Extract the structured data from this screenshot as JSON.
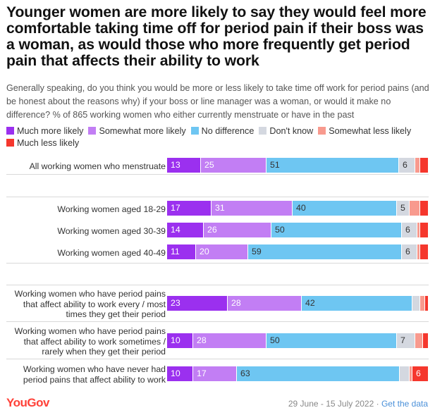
{
  "title": "Younger women are more likely to say they would feel more comfortable taking time off for period pain if their boss was a woman, as would those who more frequently get period pain that affects their ability to work",
  "subtitle": "Generally speaking, do you think you would be more or less likely to take time off work for period pains (and be honest about the reasons why) if your boss or line manager was a woman, or would it make no difference? % of 865 working women who either currently menstruate or have in the past",
  "footer": {
    "logo": "YouGov",
    "dates": "29 June - 15 July 2022",
    "separator": " · ",
    "link": "Get the data"
  },
  "chart_data": {
    "type": "bar",
    "orientation": "horizontal",
    "stacked": true,
    "normalized": true,
    "xlim": [
      0,
      100
    ],
    "legend_position": "top",
    "categories": [
      "All working women who menstruate",
      "Working women aged 18-29",
      "Working women aged 30-39",
      "Working women aged 40-49",
      "Working women who have period pains that affect ability to work every / most times they get their period",
      "Working women who have period pains that affect ability to work sometimes / rarely when they get their period",
      "Working women who have never had period pains that affect ability to work"
    ],
    "series": [
      {
        "name": "Much more likely",
        "color": "#9b30ef",
        "text_color": "#ffffff",
        "values": [
          13,
          17,
          14,
          11,
          23,
          10,
          10
        ]
      },
      {
        "name": "Somewhat more likely",
        "color": "#c27ef4",
        "text_color": "#ffffff",
        "values": [
          25,
          31,
          26,
          20,
          28,
          28,
          17
        ]
      },
      {
        "name": "No difference",
        "color": "#6ec6f2",
        "text_color": "#333333",
        "values": [
          51,
          40,
          50,
          59,
          42,
          50,
          63
        ]
      },
      {
        "name": "Don't know",
        "color": "#d4d8e0",
        "text_color": "#333333",
        "values": [
          6,
          5,
          6,
          6,
          3,
          7,
          4
        ]
      },
      {
        "name": "Somewhat less likely",
        "color": "#f89a8e",
        "text_color": "#333333",
        "values": [
          2,
          4,
          1,
          1,
          2,
          3,
          1
        ]
      },
      {
        "name": "Much less likely",
        "color": "#f5372d",
        "text_color": "#ffffff",
        "values": [
          3,
          3,
          3,
          3,
          1,
          2,
          6
        ]
      }
    ],
    "value_labels": [
      [
        "13",
        "25",
        "51",
        "6",
        "",
        ""
      ],
      [
        "17",
        "31",
        "40",
        "5",
        "",
        ""
      ],
      [
        "14",
        "26",
        "50",
        "6",
        "",
        ""
      ],
      [
        "11",
        "20",
        "59",
        "6",
        "",
        ""
      ],
      [
        "23",
        "28",
        "42",
        "",
        "",
        ""
      ],
      [
        "10",
        "28",
        "50",
        "7",
        "",
        ""
      ],
      [
        "10",
        "17",
        "63",
        "",
        "",
        "6"
      ]
    ]
  }
}
